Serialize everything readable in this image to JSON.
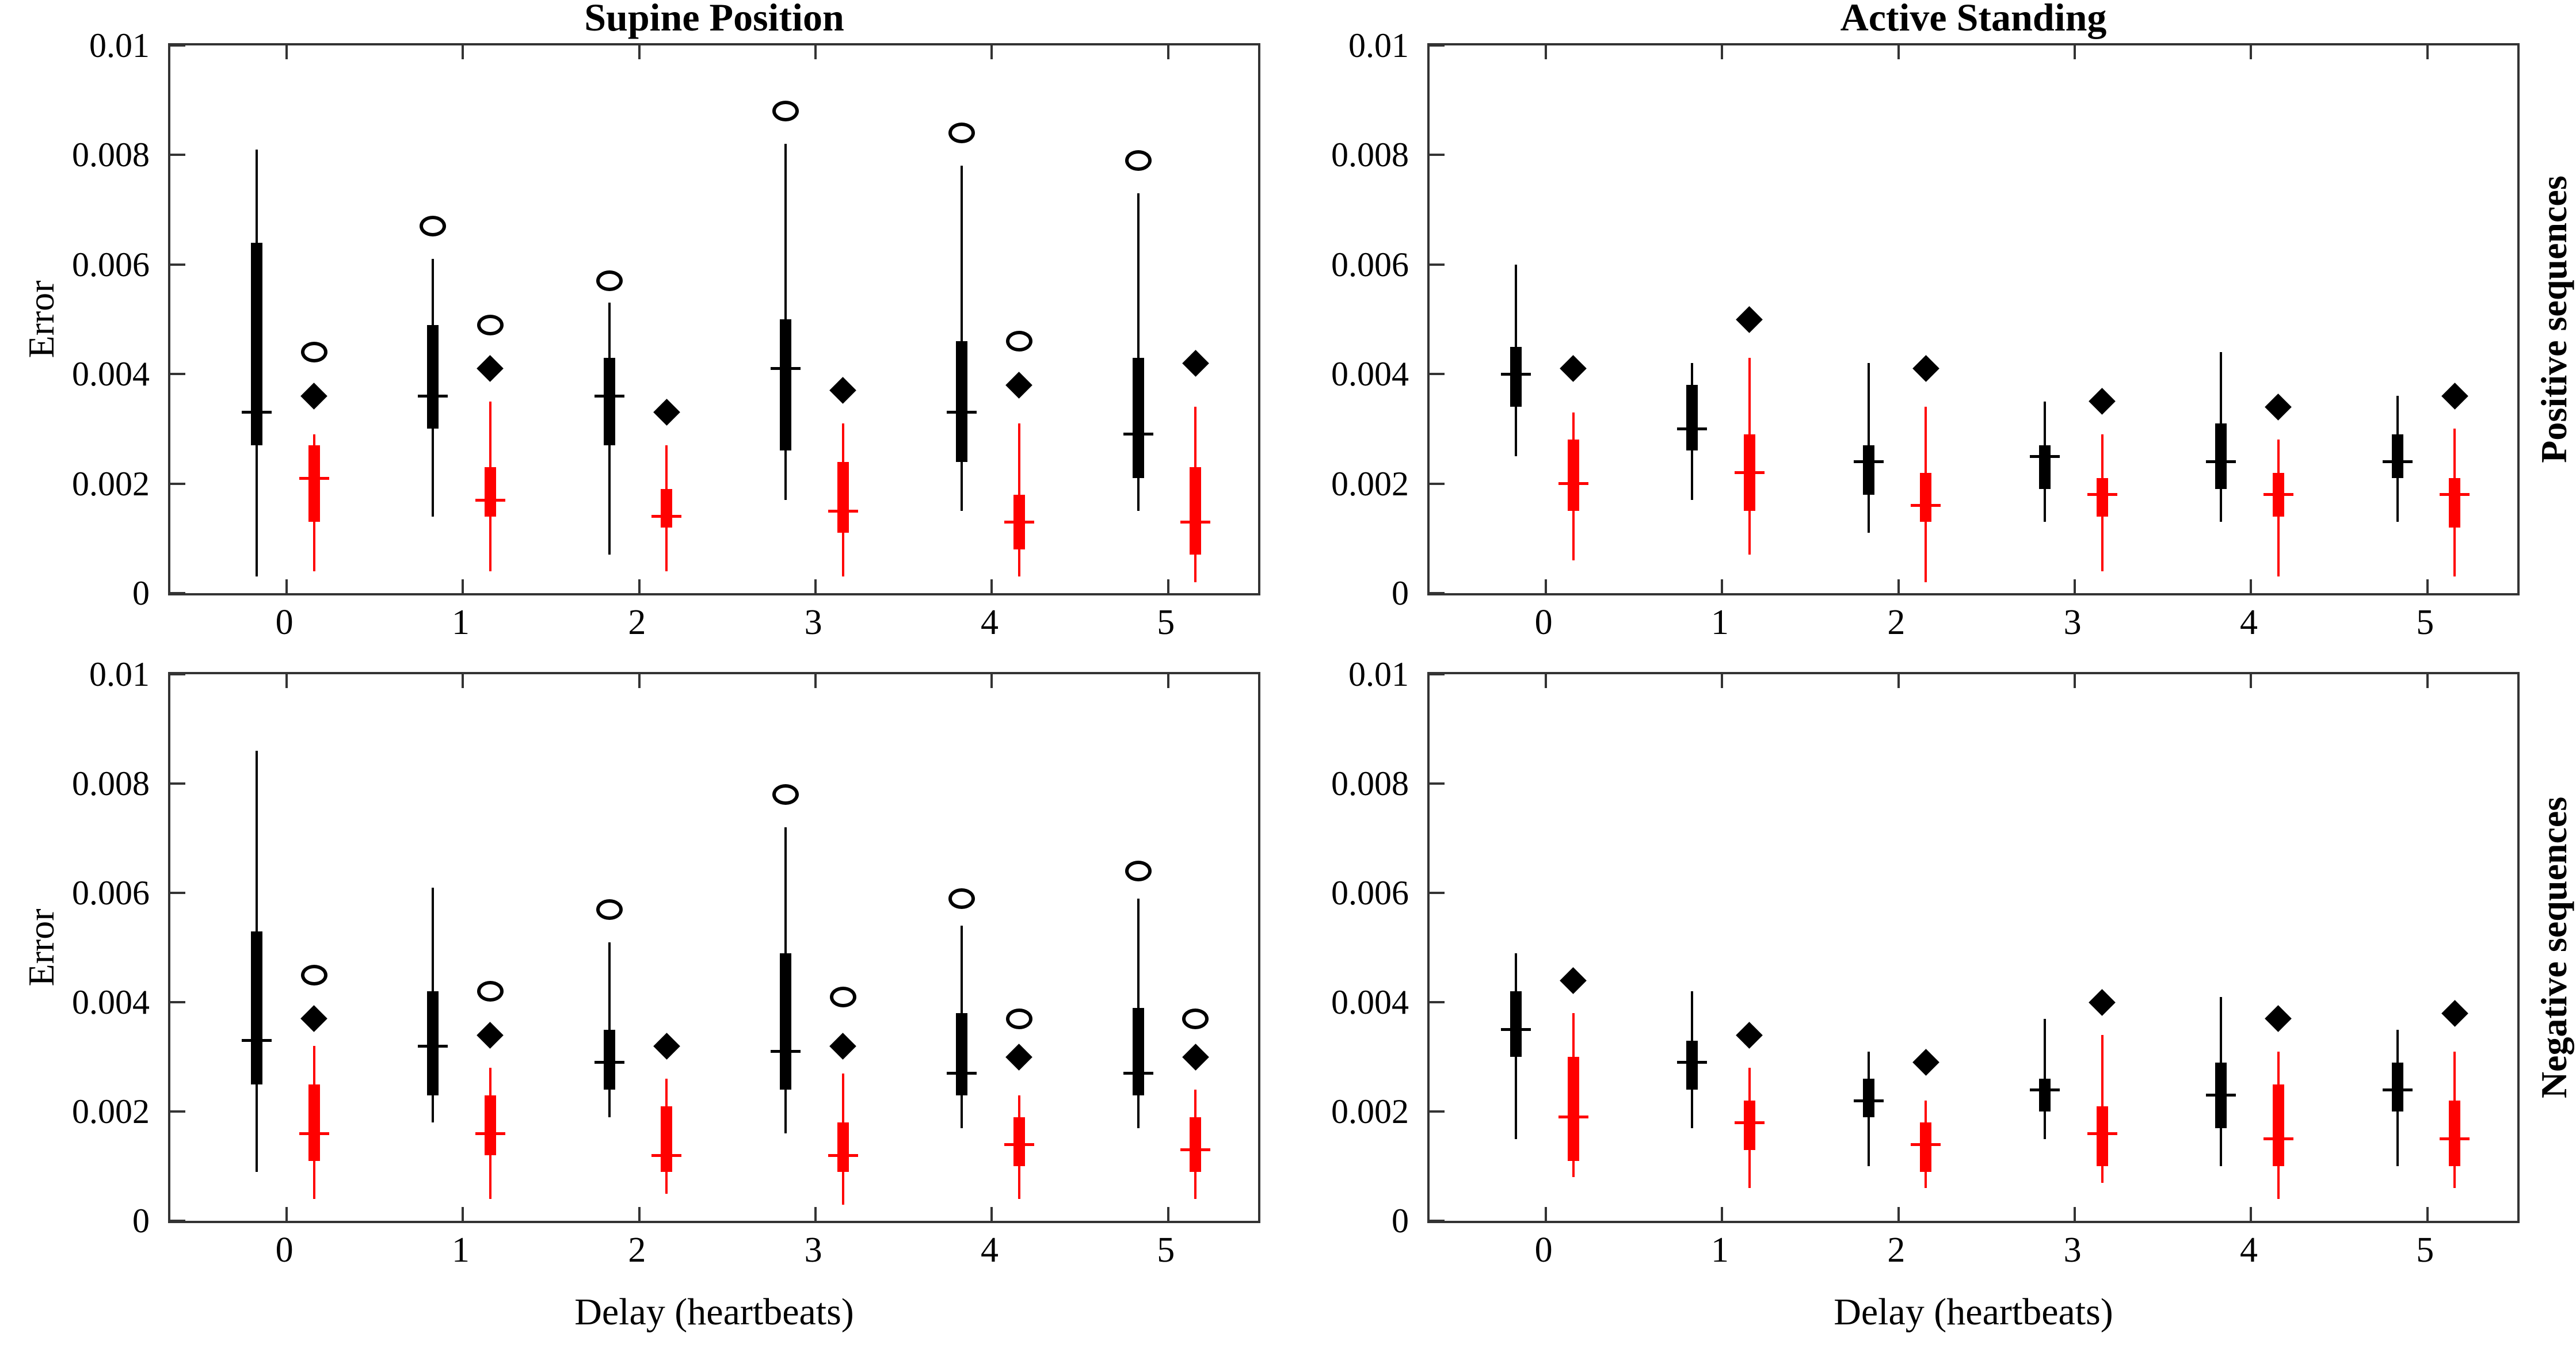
{
  "figure": {
    "colors": {
      "series1": "#000000",
      "series2": "#ff0000",
      "axis": "#333333",
      "background": "#ffffff"
    },
    "y_tick_labels": [
      "0",
      "0.002",
      "0.004",
      "0.006",
      "0.008",
      "0.01"
    ],
    "y_tick_values": [
      0,
      0.002,
      0.004,
      0.006,
      0.008,
      0.01
    ],
    "x_tick_labels": [
      "0",
      "1",
      "2",
      "3",
      "4",
      "5"
    ],
    "col_titles": [
      "Supine Position",
      "Active Standing"
    ],
    "row_labels": [
      "Positive sequences",
      "Negative sequences"
    ],
    "y_axis_label": "Error",
    "x_axis_label": "Delay (heartbeats)"
  },
  "chart_data": [
    {
      "type": "boxplot",
      "title": "Supine Position",
      "row_label": "",
      "ylabel": "Error",
      "xlabel": "",
      "ylim": [
        0,
        0.01
      ],
      "x": [
        0,
        1,
        2,
        3,
        4,
        5
      ],
      "black": [
        {
          "whisker_low": 0.0003,
          "q1": 0.0027,
          "median": 0.0033,
          "q3": 0.0064,
          "whisker_high": 0.0081,
          "outlier": null
        },
        {
          "whisker_low": 0.0014,
          "q1": 0.003,
          "median": 0.0036,
          "q3": 0.0049,
          "whisker_high": 0.0061,
          "outlier": 0.0067
        },
        {
          "whisker_low": 0.0007,
          "q1": 0.0027,
          "median": 0.0036,
          "q3": 0.0043,
          "whisker_high": 0.0053,
          "outlier": 0.0057
        },
        {
          "whisker_low": 0.0017,
          "q1": 0.0026,
          "median": 0.0041,
          "q3": 0.005,
          "whisker_high": 0.0082,
          "outlier": 0.0088
        },
        {
          "whisker_low": 0.0015,
          "q1": 0.0024,
          "median": 0.0033,
          "q3": 0.0046,
          "whisker_high": 0.0078,
          "outlier": 0.0084
        },
        {
          "whisker_low": 0.0015,
          "q1": 0.0021,
          "median": 0.0029,
          "q3": 0.0043,
          "whisker_high": 0.0073,
          "outlier": 0.0079
        }
      ],
      "red": [
        {
          "whisker_low": 0.0004,
          "q1": 0.0013,
          "median": 0.0021,
          "q3": 0.0027,
          "whisker_high": 0.0029
        },
        {
          "whisker_low": 0.0004,
          "q1": 0.0014,
          "median": 0.0017,
          "q3": 0.0023,
          "whisker_high": 0.0035
        },
        {
          "whisker_low": 0.0004,
          "q1": 0.0012,
          "median": 0.0014,
          "q3": 0.0019,
          "whisker_high": 0.0027
        },
        {
          "whisker_low": 0.0003,
          "q1": 0.0011,
          "median": 0.0015,
          "q3": 0.0024,
          "whisker_high": 0.0031
        },
        {
          "whisker_low": 0.0003,
          "q1": 0.0008,
          "median": 0.0013,
          "q3": 0.0018,
          "whisker_high": 0.0031
        },
        {
          "whisker_low": 0.0002,
          "q1": 0.0007,
          "median": 0.0013,
          "q3": 0.0023,
          "whisker_high": 0.0034
        }
      ],
      "circle_markers": [
        0.0044,
        0.0049,
        null,
        null,
        0.0046,
        null
      ],
      "diamond_markers": [
        0.0036,
        0.0041,
        0.0033,
        0.0037,
        0.0038,
        0.0042
      ]
    },
    {
      "type": "boxplot",
      "title": "Active Standing",
      "row_label": "Positive sequences",
      "ylabel": "",
      "xlabel": "",
      "ylim": [
        0,
        0.01
      ],
      "x": [
        0,
        1,
        2,
        3,
        4,
        5
      ],
      "black": [
        {
          "whisker_low": 0.0025,
          "q1": 0.0034,
          "median": 0.004,
          "q3": 0.0045,
          "whisker_high": 0.006,
          "outlier": null
        },
        {
          "whisker_low": 0.0017,
          "q1": 0.0026,
          "median": 0.003,
          "q3": 0.0038,
          "whisker_high": 0.0042,
          "outlier": null
        },
        {
          "whisker_low": 0.0011,
          "q1": 0.0018,
          "median": 0.0024,
          "q3": 0.0027,
          "whisker_high": 0.0042,
          "outlier": null
        },
        {
          "whisker_low": 0.0013,
          "q1": 0.0019,
          "median": 0.0025,
          "q3": 0.0027,
          "whisker_high": 0.0035,
          "outlier": null
        },
        {
          "whisker_low": 0.0013,
          "q1": 0.0019,
          "median": 0.0024,
          "q3": 0.0031,
          "whisker_high": 0.0044,
          "outlier": null
        },
        {
          "whisker_low": 0.0013,
          "q1": 0.0021,
          "median": 0.0024,
          "q3": 0.0029,
          "whisker_high": 0.0036,
          "outlier": null
        }
      ],
      "red": [
        {
          "whisker_low": 0.0006,
          "q1": 0.0015,
          "median": 0.002,
          "q3": 0.0028,
          "whisker_high": 0.0033
        },
        {
          "whisker_low": 0.0007,
          "q1": 0.0015,
          "median": 0.0022,
          "q3": 0.0029,
          "whisker_high": 0.0043
        },
        {
          "whisker_low": 0.0002,
          "q1": 0.0013,
          "median": 0.0016,
          "q3": 0.0022,
          "whisker_high": 0.0034
        },
        {
          "whisker_low": 0.0004,
          "q1": 0.0014,
          "median": 0.0018,
          "q3": 0.0021,
          "whisker_high": 0.0029
        },
        {
          "whisker_low": 0.0003,
          "q1": 0.0014,
          "median": 0.0018,
          "q3": 0.0022,
          "whisker_high": 0.0028
        },
        {
          "whisker_low": 0.0003,
          "q1": 0.0012,
          "median": 0.0018,
          "q3": 0.0021,
          "whisker_high": 0.003
        }
      ],
      "circle_markers": [
        null,
        null,
        null,
        null,
        null,
        null
      ],
      "diamond_markers": [
        0.0041,
        0.005,
        0.0041,
        0.0035,
        0.0034,
        0.0036
      ]
    },
    {
      "type": "boxplot",
      "title": "",
      "row_label": "",
      "ylabel": "Error",
      "xlabel": "Delay (heartbeats)",
      "ylim": [
        0,
        0.01
      ],
      "x": [
        0,
        1,
        2,
        3,
        4,
        5
      ],
      "black": [
        {
          "whisker_low": 0.0009,
          "q1": 0.0025,
          "median": 0.0033,
          "q3": 0.0053,
          "whisker_high": 0.0086,
          "outlier": null
        },
        {
          "whisker_low": 0.0018,
          "q1": 0.0023,
          "median": 0.0032,
          "q3": 0.0042,
          "whisker_high": 0.0061,
          "outlier": null
        },
        {
          "whisker_low": 0.0019,
          "q1": 0.0024,
          "median": 0.0029,
          "q3": 0.0035,
          "whisker_high": 0.0051,
          "outlier": 0.0057
        },
        {
          "whisker_low": 0.0016,
          "q1": 0.0024,
          "median": 0.0031,
          "q3": 0.0049,
          "whisker_high": 0.0072,
          "outlier": 0.0078
        },
        {
          "whisker_low": 0.0017,
          "q1": 0.0023,
          "median": 0.0027,
          "q3": 0.0038,
          "whisker_high": 0.0054,
          "outlier": 0.0059
        },
        {
          "whisker_low": 0.0017,
          "q1": 0.0023,
          "median": 0.0027,
          "q3": 0.0039,
          "whisker_high": 0.0059,
          "outlier": 0.0064
        }
      ],
      "red": [
        {
          "whisker_low": 0.0004,
          "q1": 0.0011,
          "median": 0.0016,
          "q3": 0.0025,
          "whisker_high": 0.0032
        },
        {
          "whisker_low": 0.0004,
          "q1": 0.0012,
          "median": 0.0016,
          "q3": 0.0023,
          "whisker_high": 0.0028
        },
        {
          "whisker_low": 0.0005,
          "q1": 0.0009,
          "median": 0.0012,
          "q3": 0.0021,
          "whisker_high": 0.0026
        },
        {
          "whisker_low": 0.0003,
          "q1": 0.0009,
          "median": 0.0012,
          "q3": 0.0018,
          "whisker_high": 0.0027
        },
        {
          "whisker_low": 0.0004,
          "q1": 0.001,
          "median": 0.0014,
          "q3": 0.0019,
          "whisker_high": 0.0023
        },
        {
          "whisker_low": 0.0004,
          "q1": 0.0009,
          "median": 0.0013,
          "q3": 0.0019,
          "whisker_high": 0.0024
        }
      ],
      "circle_markers": [
        0.0045,
        0.0042,
        null,
        0.0041,
        0.0037,
        0.0037
      ],
      "diamond_markers": [
        0.0037,
        0.0034,
        0.0032,
        0.0032,
        0.003,
        0.003
      ]
    },
    {
      "type": "boxplot",
      "title": "",
      "row_label": "Negative sequences",
      "ylabel": "",
      "xlabel": "Delay (heartbeats)",
      "ylim": [
        0,
        0.01
      ],
      "x": [
        0,
        1,
        2,
        3,
        4,
        5
      ],
      "black": [
        {
          "whisker_low": 0.0015,
          "q1": 0.003,
          "median": 0.0035,
          "q3": 0.0042,
          "whisker_high": 0.0049,
          "outlier": null
        },
        {
          "whisker_low": 0.0017,
          "q1": 0.0024,
          "median": 0.0029,
          "q3": 0.0033,
          "whisker_high": 0.0042,
          "outlier": null
        },
        {
          "whisker_low": 0.001,
          "q1": 0.0019,
          "median": 0.0022,
          "q3": 0.0026,
          "whisker_high": 0.0031,
          "outlier": null
        },
        {
          "whisker_low": 0.0015,
          "q1": 0.002,
          "median": 0.0024,
          "q3": 0.0026,
          "whisker_high": 0.0037,
          "outlier": null
        },
        {
          "whisker_low": 0.001,
          "q1": 0.0017,
          "median": 0.0023,
          "q3": 0.0029,
          "whisker_high": 0.0041,
          "outlier": null
        },
        {
          "whisker_low": 0.001,
          "q1": 0.002,
          "median": 0.0024,
          "q3": 0.0029,
          "whisker_high": 0.0035,
          "outlier": null
        }
      ],
      "red": [
        {
          "whisker_low": 0.0008,
          "q1": 0.0011,
          "median": 0.0019,
          "q3": 0.003,
          "whisker_high": 0.0038
        },
        {
          "whisker_low": 0.0006,
          "q1": 0.0013,
          "median": 0.0018,
          "q3": 0.0022,
          "whisker_high": 0.0028
        },
        {
          "whisker_low": 0.0006,
          "q1": 0.0009,
          "median": 0.0014,
          "q3": 0.0018,
          "whisker_high": 0.0022
        },
        {
          "whisker_low": 0.0007,
          "q1": 0.001,
          "median": 0.0016,
          "q3": 0.0021,
          "whisker_high": 0.0034
        },
        {
          "whisker_low": 0.0004,
          "q1": 0.001,
          "median": 0.0015,
          "q3": 0.0025,
          "whisker_high": 0.0031
        },
        {
          "whisker_low": 0.0006,
          "q1": 0.001,
          "median": 0.0015,
          "q3": 0.0022,
          "whisker_high": 0.0031
        }
      ],
      "circle_markers": [
        null,
        null,
        null,
        null,
        null,
        null
      ],
      "diamond_markers": [
        0.0044,
        0.0034,
        0.0029,
        0.004,
        0.0037,
        0.0038
      ]
    }
  ]
}
